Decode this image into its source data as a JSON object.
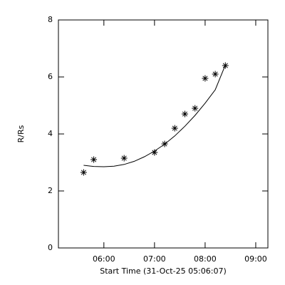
{
  "chart_data": {
    "type": "scatter",
    "y_label": "R/Rs",
    "x_label": "Start Time (31-Oct-25 05:06:07)",
    "xlim": [
      5.102,
      9.24
    ],
    "ylim": [
      0,
      8
    ],
    "xticks": [
      {
        "value": 6,
        "label": "06:00"
      },
      {
        "value": 7,
        "label": "07:00"
      },
      {
        "value": 8,
        "label": "08:00"
      },
      {
        "value": 9,
        "label": "09:00"
      }
    ],
    "yticks": [
      0,
      2,
      4,
      6,
      8
    ],
    "color": "#000000",
    "series": [
      {
        "style": "asterisk",
        "color": "#000000",
        "x": [
          5.6,
          5.8,
          6.4,
          7.0,
          7.2,
          7.4,
          7.6,
          7.8,
          8.0,
          8.2,
          8.4
        ],
        "values": [
          2.65,
          3.1,
          3.15,
          3.35,
          3.65,
          4.2,
          4.7,
          4.9,
          5.95,
          6.1,
          6.4
        ]
      },
      {
        "style": "line",
        "color": "#000000",
        "x": [
          5.6,
          5.8,
          6.0,
          6.2,
          6.4,
          6.6,
          6.8,
          7.0,
          7.2,
          7.4,
          7.6,
          7.8,
          8.0,
          8.2,
          8.4
        ],
        "values": [
          2.9,
          2.86,
          2.85,
          2.87,
          2.93,
          3.04,
          3.2,
          3.4,
          3.64,
          3.93,
          4.27,
          4.65,
          5.08,
          5.55,
          6.42
        ]
      }
    ]
  }
}
